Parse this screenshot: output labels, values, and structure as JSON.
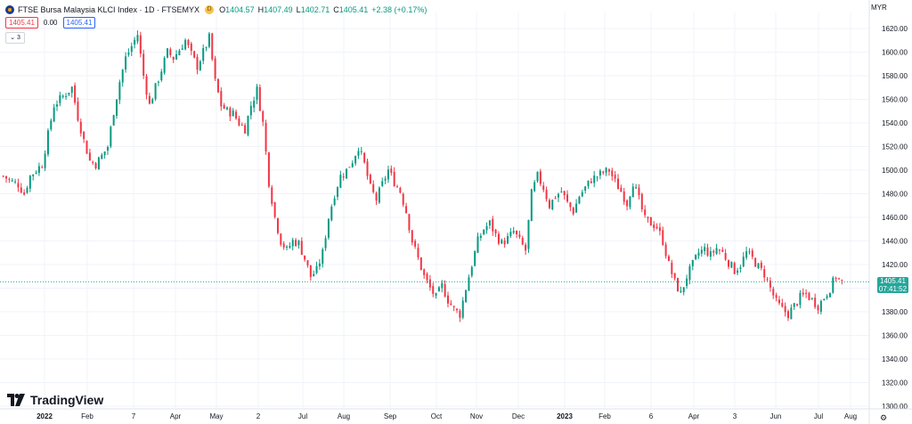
{
  "header": {
    "title": "FTSE Bursa Malaysia KLCI Index · 1D · FTSEMYX",
    "badge": "D",
    "ohlc": [
      {
        "label": "O",
        "value": "1404.57"
      },
      {
        "label": "H",
        "value": "1407.49"
      },
      {
        "label": "L",
        "value": "1402.71"
      },
      {
        "label": "C",
        "value": "1405.41"
      }
    ],
    "change": "+2.38 (+0.17%)",
    "sell_price": "1405.41",
    "spread": "0.00",
    "buy_price": "1405.41",
    "indicators_count": "3"
  },
  "currency": "MYR",
  "last_price": {
    "value": "1405.41",
    "countdown": "07:41:52"
  },
  "branding": "TradingView",
  "icons": {
    "symbol": "klci-symbol-icon",
    "settings": "gear-icon",
    "collapse": "chevron-down-icon"
  },
  "colors": {
    "up": "#089981",
    "down": "#f23645",
    "last_price": "#26a69a",
    "grid": "#f0f3fa"
  },
  "chart_data": {
    "type": "candlestick",
    "ylim": [
      1300,
      1620
    ],
    "y_ticks": [
      1300,
      1320,
      1340,
      1360,
      1380,
      1400,
      1420,
      1440,
      1460,
      1480,
      1500,
      1520,
      1540,
      1560,
      1580,
      1600,
      1620
    ],
    "x_tick_labels": [
      "2022",
      "Feb",
      "7",
      "Apr",
      "May",
      "2",
      "Jul",
      "Aug",
      "Sep",
      "Oct",
      "Nov",
      "Dec",
      "2023",
      "Feb",
      "6",
      "Apr",
      "3",
      "Jun",
      "Jul",
      "Aug"
    ],
    "grid": true,
    "series": [
      {
        "kind": "close_path",
        "points": [
          [
            0,
            1495
          ],
          [
            3,
            1490
          ],
          [
            5,
            1488
          ],
          [
            7,
            1480
          ],
          [
            9,
            1495
          ],
          [
            11,
            1500
          ],
          [
            13,
            1505
          ],
          [
            15,
            1530
          ],
          [
            17,
            1555
          ],
          [
            19,
            1560
          ],
          [
            21,
            1565
          ],
          [
            23,
            1570
          ],
          [
            25,
            1545
          ],
          [
            27,
            1525
          ],
          [
            29,
            1508
          ],
          [
            31,
            1505
          ],
          [
            33,
            1512
          ],
          [
            35,
            1520
          ],
          [
            37,
            1550
          ],
          [
            39,
            1575
          ],
          [
            41,
            1595
          ],
          [
            43,
            1605
          ],
          [
            45,
            1615
          ],
          [
            47,
            1580
          ],
          [
            49,
            1555
          ],
          [
            51,
            1570
          ],
          [
            53,
            1585
          ],
          [
            55,
            1600
          ],
          [
            57,
            1595
          ],
          [
            59,
            1602
          ],
          [
            61,
            1610
          ],
          [
            63,
            1598
          ],
          [
            65,
            1588
          ],
          [
            67,
            1600
          ],
          [
            69,
            1612
          ],
          [
            71,
            1575
          ],
          [
            73,
            1555
          ],
          [
            75,
            1550
          ],
          [
            77,
            1548
          ],
          [
            79,
            1540
          ],
          [
            81,
            1535
          ],
          [
            83,
            1555
          ],
          [
            85,
            1568
          ],
          [
            87,
            1540
          ],
          [
            89,
            1490
          ],
          [
            91,
            1460
          ],
          [
            93,
            1440
          ],
          [
            95,
            1432
          ],
          [
            97,
            1440
          ],
          [
            99,
            1438
          ],
          [
            101,
            1425
          ],
          [
            103,
            1410
          ],
          [
            105,
            1415
          ],
          [
            107,
            1430
          ],
          [
            109,
            1460
          ],
          [
            111,
            1480
          ],
          [
            113,
            1495
          ],
          [
            115,
            1500
          ],
          [
            117,
            1508
          ],
          [
            119,
            1520
          ],
          [
            121,
            1505
          ],
          [
            123,
            1485
          ],
          [
            125,
            1475
          ],
          [
            127,
            1488
          ],
          [
            129,
            1500
          ],
          [
            131,
            1490
          ],
          [
            133,
            1482
          ],
          [
            135,
            1465
          ],
          [
            137,
            1440
          ],
          [
            139,
            1425
          ],
          [
            141,
            1410
          ],
          [
            143,
            1400
          ],
          [
            145,
            1392
          ],
          [
            147,
            1402
          ],
          [
            149,
            1390
          ],
          [
            151,
            1382
          ],
          [
            153,
            1378
          ],
          [
            155,
            1400
          ],
          [
            157,
            1420
          ],
          [
            159,
            1440
          ],
          [
            161,
            1450
          ],
          [
            163,
            1455
          ],
          [
            165,
            1445
          ],
          [
            167,
            1438
          ],
          [
            169,
            1442
          ],
          [
            171,
            1448
          ],
          [
            173,
            1440
          ],
          [
            175,
            1432
          ],
          [
            177,
            1480
          ],
          [
            179,
            1495
          ],
          [
            181,
            1485
          ],
          [
            183,
            1470
          ],
          [
            185,
            1478
          ],
          [
            187,
            1482
          ],
          [
            189,
            1472
          ],
          [
            191,
            1465
          ],
          [
            193,
            1478
          ],
          [
            195,
            1485
          ],
          [
            197,
            1492
          ],
          [
            199,
            1495
          ],
          [
            201,
            1498
          ],
          [
            203,
            1500
          ],
          [
            205,
            1490
          ],
          [
            207,
            1482
          ],
          [
            209,
            1472
          ],
          [
            211,
            1490
          ],
          [
            213,
            1475
          ],
          [
            215,
            1458
          ],
          [
            217,
            1455
          ],
          [
            219,
            1452
          ],
          [
            221,
            1440
          ],
          [
            223,
            1420
          ],
          [
            225,
            1405
          ],
          [
            227,
            1395
          ],
          [
            229,
            1410
          ],
          [
            231,
            1420
          ],
          [
            233,
            1430
          ],
          [
            235,
            1433
          ],
          [
            237,
            1428
          ],
          [
            239,
            1434
          ],
          [
            241,
            1430
          ],
          [
            243,
            1422
          ],
          [
            245,
            1415
          ],
          [
            247,
            1420
          ],
          [
            249,
            1430
          ],
          [
            251,
            1425
          ],
          [
            253,
            1418
          ],
          [
            255,
            1412
          ],
          [
            257,
            1400
          ],
          [
            259,
            1388
          ],
          [
            261,
            1382
          ],
          [
            263,
            1378
          ],
          [
            265,
            1385
          ],
          [
            267,
            1392
          ],
          [
            269,
            1395
          ],
          [
            271,
            1390
          ],
          [
            273,
            1385
          ],
          [
            275,
            1392
          ],
          [
            277,
            1400
          ],
          [
            279,
            1410
          ],
          [
            281,
            1405
          ]
        ]
      }
    ],
    "last_close": 1405.41
  }
}
